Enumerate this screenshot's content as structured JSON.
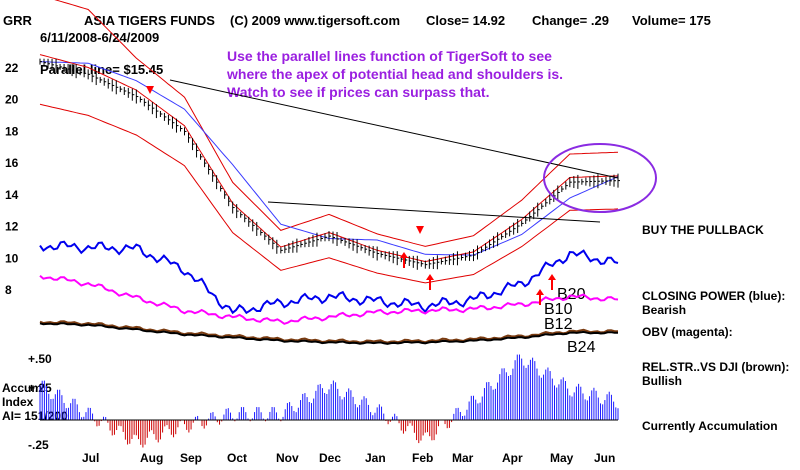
{
  "header": {
    "symbol": "GRR",
    "title": "ASIA TIGERS FUNDS",
    "copyright": "(C) 2009 www.tigersoft.com",
    "close": "Close=  14.92",
    "change": "Change= .29",
    "volume": "Volume= 175",
    "date_range": "6/11/2008-6/24/2009"
  },
  "annotations": {
    "parallel_line": "Parallel line= $15.45",
    "note_lines": [
      "Use the parallel lines function of TigerSoft to see",
      "where the apex of potential head and shoulders is.",
      "Watch to see if prices can surpass that."
    ],
    "signals": [
      "B20",
      "B10",
      "B12",
      "B24"
    ]
  },
  "side_labels": {
    "pullback": "BUY THE PULLBACK",
    "closing_power": "CLOSING POWER (blue):",
    "closing_power_state": "Bearish",
    "obv": "OBV (magenta):",
    "rel_str": "REL.STR..VS DJI (brown):",
    "rel_str_state": "Bullish",
    "accum_status": "Currently Accumulation",
    "accum_title_1": "Accum",
    "accum_title_2": "Index",
    "accum_value": "AI= 151/200"
  },
  "colors": {
    "price_bars": "#000000",
    "ma_blue": "#3a3aff",
    "band_red": "#e00000",
    "closing_power": "#0000ee",
    "obv": "#ff00ff",
    "rel_str": "#7a3b10",
    "accum_positive": "#1a1aff",
    "accum_negative": "#cc0000",
    "note_text": "#9a1fe0",
    "signal_arrow": "#ff0000"
  },
  "chart_data": {
    "type": "line",
    "title": "ASIA TIGERS FUNDS",
    "x_ticks": [
      "Jul",
      "Aug",
      "Sep",
      "Oct",
      "Nov",
      "Dec",
      "Jan",
      "Feb",
      "Mar",
      "Apr",
      "May",
      "Jun"
    ],
    "y_ticks": [
      "22",
      "20",
      "18",
      "16",
      "14",
      "12",
      "10",
      "8"
    ],
    "y_tick_values": [
      22,
      20,
      18,
      16,
      14,
      12,
      10,
      8
    ],
    "accum_ticks": [
      "+.50",
      "+.25",
      "-.25"
    ],
    "grid": false,
    "series": [
      {
        "name": "",
        "kind": "price",
        "x": [
          "Jun",
          "Jul",
          "Aug",
          "Sep",
          "Oct",
          "Nov",
          "Dec",
          "Jan",
          "Feb",
          "Mar",
          "Apr",
          "May",
          "Jun"
        ],
        "values": [
          22.4,
          21.6,
          20.2,
          18.0,
          13.2,
          10.5,
          11.4,
          10.3,
          9.6,
          10.2,
          12.2,
          14.8,
          14.9
        ]
      },
      {
        "name": "CLOSING POWER (blue)",
        "kind": "lower_indicator",
        "values": [
          10.8,
          10.7,
          10.6,
          9.3,
          6.6,
          7.2,
          7.6,
          7.3,
          7.0,
          7.4,
          8.4,
          10.3,
          9.7
        ]
      },
      {
        "name": "OBV (magenta)",
        "kind": "lower_indicator",
        "values": [
          8.9,
          8.4,
          7.5,
          6.7,
          6.3,
          6.0,
          6.3,
          6.6,
          6.7,
          6.8,
          7.1,
          7.6,
          7.4
        ]
      },
      {
        "name": "REL.STR..VS DJI (brown)",
        "kind": "lower_indicator",
        "values": [
          6.0,
          5.9,
          5.6,
          5.3,
          5.1,
          4.9,
          4.8,
          4.75,
          4.8,
          4.9,
          5.1,
          5.4,
          5.4
        ]
      }
    ],
    "accum_index": {
      "name": "Accum Index",
      "current": "AI= 151/200",
      "values": [
        0.28,
        0.05,
        -0.18,
        -0.05,
        0.05,
        0.05,
        0.28,
        0.08,
        -0.16,
        0.15,
        0.5,
        0.25,
        0.15
      ]
    }
  }
}
